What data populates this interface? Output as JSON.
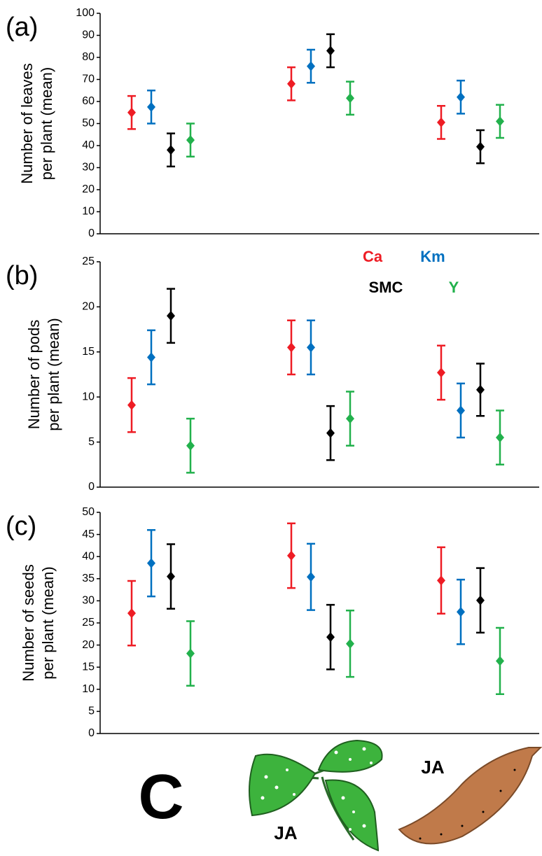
{
  "chart_data": [
    {
      "type": "errorbar",
      "panel_label": "(a)",
      "ylabel": [
        "Number of leaves",
        "per plant (mean)"
      ],
      "categories": [
        null,
        null,
        null
      ],
      "ylim": [
        0,
        100
      ],
      "yticks": [
        0,
        10,
        20,
        30,
        40,
        50,
        60,
        70,
        80,
        90,
        100
      ],
      "series": [
        {
          "color": "#ee1c24",
          "values": [
            55,
            68,
            50.5
          ],
          "errors": [
            7.5,
            7.5,
            7.5
          ]
        },
        {
          "color": "#0070c0",
          "values": [
            57.5,
            76,
            62
          ],
          "errors": [
            7.5,
            7.5,
            7.5
          ]
        },
        {
          "color": "#000000",
          "values": [
            38,
            83,
            39.5
          ],
          "errors": [
            7.5,
            7.5,
            7.5
          ]
        },
        {
          "color": "#22b14c",
          "values": [
            42.5,
            61.5,
            51
          ],
          "errors": [
            7.5,
            7.5,
            7.5
          ]
        }
      ]
    },
    {
      "type": "errorbar",
      "panel_label": "(b)",
      "ylabel": [
        "Number of pods",
        "per plant (mean)"
      ],
      "categories": [
        null,
        null,
        null
      ],
      "ylim": [
        0,
        25
      ],
      "yticks": [
        0,
        5,
        10,
        15,
        20,
        25
      ],
      "legend": "upper right",
      "series": [
        {
          "name": "Ca",
          "color": "#ee1c24",
          "values": [
            9.1,
            15.5,
            12.7
          ],
          "errors": [
            3,
            3,
            3
          ]
        },
        {
          "name": "Km",
          "color": "#0070c0",
          "values": [
            14.4,
            15.5,
            8.5
          ],
          "errors": [
            3,
            3,
            3
          ]
        },
        {
          "name": "SMC",
          "color": "#000000",
          "values": [
            19,
            6,
            10.8
          ],
          "errors": [
            3,
            3,
            2.9
          ]
        },
        {
          "name": "Y",
          "color": "#22b14c",
          "values": [
            4.6,
            7.6,
            5.5
          ],
          "errors": [
            3,
            3,
            3
          ]
        }
      ]
    },
    {
      "type": "errorbar",
      "panel_label": "(c)",
      "ylabel": [
        "Number of seeds",
        "per plant (mean)"
      ],
      "categories": [
        "C",
        "JA",
        "JA"
      ],
      "ylim": [
        0,
        50
      ],
      "yticks": [
        0,
        5,
        10,
        15,
        20,
        25,
        30,
        35,
        40,
        45,
        50
      ],
      "series": [
        {
          "color": "#ee1c24",
          "values": [
            27.2,
            40.2,
            34.6
          ],
          "errors": [
            7.3,
            7.3,
            7.5
          ]
        },
        {
          "color": "#0070c0",
          "values": [
            38.5,
            35.4,
            27.5
          ],
          "errors": [
            7.5,
            7.5,
            7.3
          ]
        },
        {
          "color": "#000000",
          "values": [
            35.5,
            21.8,
            30.1
          ],
          "errors": [
            7.3,
            7.3,
            7.3
          ]
        },
        {
          "color": "#22b14c",
          "values": [
            18.1,
            20.3,
            16.4
          ],
          "errors": [
            7.3,
            7.5,
            7.5
          ]
        }
      ]
    }
  ]
}
